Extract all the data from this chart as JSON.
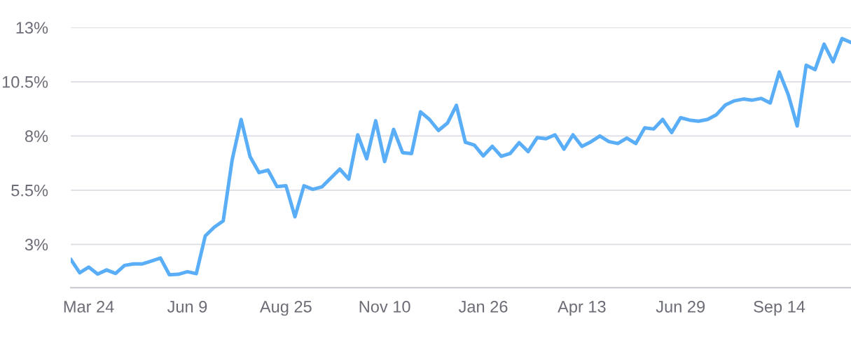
{
  "chart_data": {
    "type": "line",
    "categories": [
      null,
      null,
      "Mar 24",
      null,
      null,
      null,
      null,
      null,
      null,
      null,
      null,
      null,
      null,
      "Jun 9",
      null,
      null,
      null,
      null,
      null,
      null,
      null,
      null,
      null,
      null,
      "Aug 25",
      null,
      null,
      null,
      null,
      null,
      null,
      null,
      null,
      null,
      null,
      "Nov 10",
      null,
      null,
      null,
      null,
      null,
      null,
      null,
      null,
      null,
      null,
      "Jan 26",
      null,
      null,
      null,
      null,
      null,
      null,
      null,
      null,
      null,
      null,
      "Apr 13",
      null,
      null,
      null,
      null,
      null,
      null,
      null,
      null,
      null,
      null,
      "Jun 29",
      null,
      null,
      null,
      null,
      null,
      null,
      null,
      null,
      null,
      null,
      "Sep 14",
      null,
      null,
      null,
      null,
      null,
      null,
      null,
      null
    ],
    "series": [
      {
        "color": "#5aaef7",
        "values": [
          2.31,
          1.69,
          1.95,
          1.63,
          1.82,
          1.66,
          2.03,
          2.1,
          2.1,
          2.23,
          2.37,
          1.6,
          1.62,
          1.74,
          1.65,
          3.39,
          3.79,
          4.08,
          6.9,
          8.76,
          7.04,
          6.31,
          6.42,
          5.66,
          5.7,
          4.27,
          5.7,
          5.54,
          5.65,
          6.06,
          6.47,
          6.01,
          8.05,
          6.95,
          8.7,
          6.82,
          8.3,
          7.23,
          7.19,
          9.11,
          8.76,
          8.25,
          8.59,
          9.41,
          7.71,
          7.58,
          7.08,
          7.52,
          7.06,
          7.19,
          7.69,
          7.28,
          7.92,
          7.87,
          8.05,
          7.39,
          8.05,
          7.52,
          7.73,
          8.0,
          7.74,
          7.65,
          7.9,
          7.65,
          8.37,
          8.32,
          8.76,
          8.16,
          8.84,
          8.73,
          8.68,
          8.76,
          8.98,
          9.43,
          9.62,
          9.7,
          9.65,
          9.73,
          9.52,
          10.95,
          9.91,
          8.46,
          11.26,
          11.06,
          12.23,
          11.42,
          12.49,
          12.31
        ]
      }
    ],
    "ylim": [
      1,
      13
    ],
    "yticks": [
      {
        "value": 3,
        "label": "3%"
      },
      {
        "value": 5.5,
        "label": "5.5%"
      },
      {
        "value": 8,
        "label": "8%"
      },
      {
        "value": 10.5,
        "label": "10.5%"
      },
      {
        "value": 13,
        "label": "13%"
      }
    ],
    "grid": "y",
    "legend": false,
    "marker": "none",
    "line_style": "solid"
  }
}
